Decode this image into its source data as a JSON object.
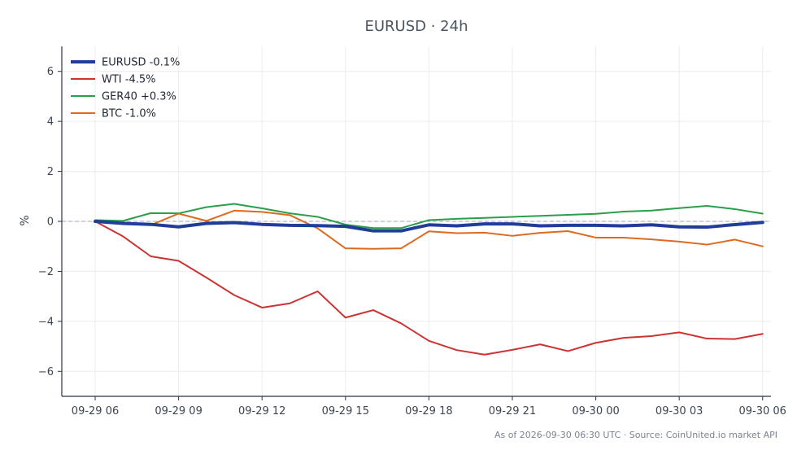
{
  "chart_data": {
    "type": "line",
    "title": "EURUSD · 24h",
    "ylabel": "%",
    "xlabel": "",
    "ylim": [
      -7,
      7
    ],
    "yticks": [
      -6,
      -4,
      -2,
      0,
      2,
      4,
      6
    ],
    "ytick_labels": [
      "−6",
      "−4",
      "−2",
      "0",
      "2",
      "4",
      "6"
    ],
    "xlim_hours": [
      -1.2,
      24.3
    ],
    "xtick_hours": [
      0,
      3,
      6,
      9,
      12,
      15,
      18,
      21,
      24
    ],
    "xtick_labels": [
      "09-29 06",
      "09-29 09",
      "09-29 12",
      "09-29 15",
      "09-29 18",
      "09-29 21",
      "09-30 00",
      "09-30 03",
      "09-30 06"
    ],
    "grid": true,
    "legend_position": "top-left",
    "baseline": 0,
    "x_hours": [
      0,
      1,
      2,
      3,
      4,
      5,
      6,
      7,
      8,
      9,
      10,
      11,
      12,
      13,
      14,
      15,
      16,
      17,
      18,
      19,
      20,
      21,
      22,
      23,
      24
    ],
    "series": [
      {
        "name": "EURUSD -0.1%",
        "color": "#1f3d99",
        "width": 4,
        "values": [
          0.0,
          -0.08,
          -0.12,
          -0.22,
          -0.08,
          -0.05,
          -0.12,
          -0.16,
          -0.17,
          -0.2,
          -0.38,
          -0.38,
          -0.14,
          -0.18,
          -0.1,
          -0.1,
          -0.18,
          -0.16,
          -0.16,
          -0.18,
          -0.14,
          -0.22,
          -0.23,
          -0.13,
          -0.04
        ]
      },
      {
        "name": "WTI -4.5%",
        "color": "#cc3333",
        "width": 2,
        "values": [
          0.0,
          -0.6,
          -1.4,
          -1.58,
          -2.25,
          -2.95,
          -3.45,
          -3.28,
          -2.8,
          -3.85,
          -3.55,
          -4.08,
          -4.78,
          -5.15,
          -5.33,
          -5.14,
          -4.92,
          -5.19,
          -4.86,
          -4.66,
          -4.59,
          -4.44,
          -4.69,
          -4.71,
          -4.5
        ]
      },
      {
        "name": "GER40 +0.3%",
        "color": "#2a9e4a",
        "width": 2,
        "values": [
          0.05,
          0.02,
          0.33,
          0.32,
          0.57,
          0.7,
          0.52,
          0.32,
          0.18,
          -0.13,
          -0.27,
          -0.27,
          0.05,
          0.1,
          0.14,
          0.18,
          0.22,
          0.26,
          0.3,
          0.39,
          0.43,
          0.53,
          0.62,
          0.49,
          0.31
        ]
      },
      {
        "name": "BTC -1.0%",
        "color": "#dd6a1f",
        "width": 2,
        "values": [
          0.0,
          -0.05,
          -0.15,
          0.31,
          0.02,
          0.43,
          0.38,
          0.25,
          -0.28,
          -1.08,
          -1.1,
          -1.08,
          -0.4,
          -0.47,
          -0.45,
          -0.58,
          -0.46,
          -0.39,
          -0.65,
          -0.65,
          -0.72,
          -0.81,
          -0.93,
          -0.73,
          -1.0
        ]
      }
    ],
    "footer": "As of 2026-09-30 06:30 UTC · Source: CoinUnited.io market API"
  }
}
